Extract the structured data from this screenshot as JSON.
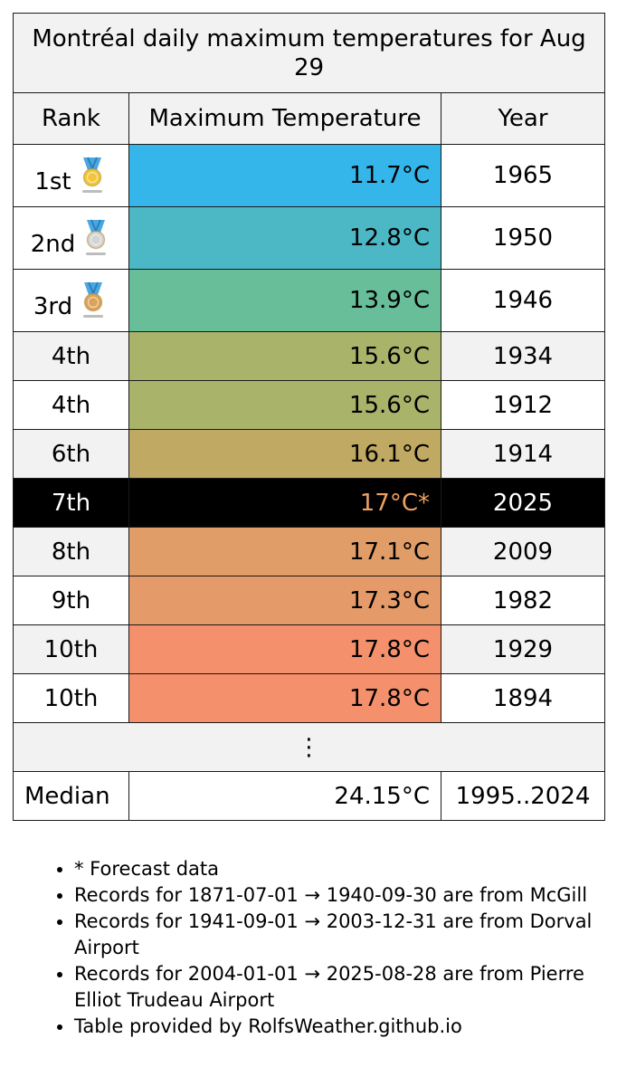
{
  "title": "Montréal daily maximum temperatures for Aug 29",
  "headers": {
    "rank": "Rank",
    "temp": "Maximum Temperature",
    "year": "Year"
  },
  "rows": [
    {
      "rank": "1st",
      "temp": "11.7°C",
      "year": "1965",
      "medal": "gold",
      "color": "#35b6ea"
    },
    {
      "rank": "2nd",
      "temp": "12.8°C",
      "year": "1950",
      "medal": "silver",
      "color": "#4cb8c6"
    },
    {
      "rank": "3rd",
      "temp": "13.9°C",
      "year": "1946",
      "medal": "bronze",
      "color": "#67be98"
    },
    {
      "rank": "4th",
      "temp": "15.6°C",
      "year": "1934",
      "color": "#a9b36a"
    },
    {
      "rank": "4th",
      "temp": "15.6°C",
      "year": "1912",
      "color": "#a9b36a"
    },
    {
      "rank": "6th",
      "temp": "16.1°C",
      "year": "1914",
      "color": "#c0aa63"
    },
    {
      "rank": "7th",
      "temp": "17°C*",
      "year": "2025",
      "highlight": true,
      "color": "#000000"
    },
    {
      "rank": "8th",
      "temp": "17.1°C",
      "year": "2009",
      "color": "#e09d68"
    },
    {
      "rank": "9th",
      "temp": "17.3°C",
      "year": "1982",
      "color": "#e49a69"
    },
    {
      "rank": "10th",
      "temp": "17.8°C",
      "year": "1929",
      "color": "#f4916c"
    },
    {
      "rank": "10th",
      "temp": "17.8°C",
      "year": "1894",
      "color": "#f4916c"
    }
  ],
  "ellipsis": "⋮",
  "median": {
    "label": "Median",
    "temp": "24.15°C",
    "years": "1995..2024"
  },
  "notes": [
    "* Forecast data",
    "Records for 1871-07-01 → 1940-09-30 are from McGill",
    "Records for 1941-09-01 → 2003-12-31 are from Dorval Airport",
    "Records for 2004-01-01 → 2025-08-28 are from Pierre Elliot Trudeau Airport",
    "Table provided by RolfsWeather.github.io"
  ],
  "colors": {
    "header_bg": "#f2f2f2",
    "highlight_bg": "#000000",
    "highlight_temp": "#f0a060",
    "medal_ribbon": "#4aa8e0",
    "gold": "#f3c53a",
    "silver": "#d4d4d4",
    "bronze": "#dba25b"
  }
}
